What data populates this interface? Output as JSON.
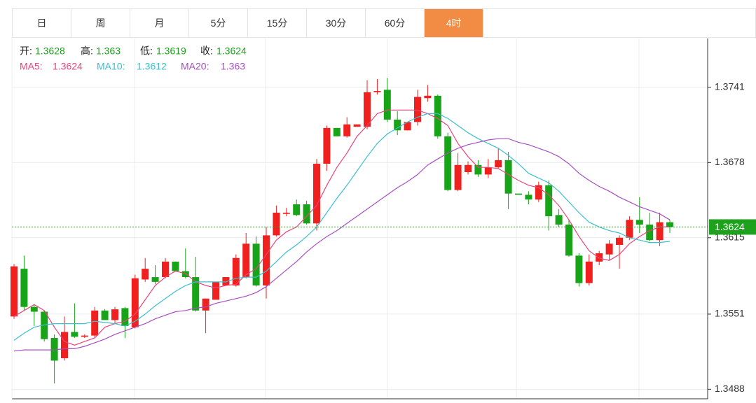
{
  "chart_data": {
    "type": "candlestick",
    "tabs": [
      "日",
      "周",
      "月",
      "5分",
      "15分",
      "30分",
      "60分",
      "4时"
    ],
    "active_tab": "4时",
    "info": [
      {
        "label": "开:",
        "value": 1.3628
      },
      {
        "label": "高:",
        "value": 1.363
      },
      {
        "label": "低:",
        "value": 1.3619
      },
      {
        "label": "收:",
        "value": 1.3624
      }
    ],
    "up_color": "#f0201f",
    "down_color": "#18a418",
    "candles": [
      [
        1.3549,
        1.3593,
        1.3547,
        1.3591
      ],
      [
        1.3589,
        1.36,
        1.3554,
        1.3557
      ],
      [
        1.3557,
        1.3559,
        1.3541,
        1.3553
      ],
      [
        1.3553,
        1.3554,
        1.3528,
        1.353
      ],
      [
        1.3531,
        1.3534,
        1.3493,
        1.3512
      ],
      [
        1.3514,
        1.3549,
        1.3512,
        1.3536
      ],
      [
        1.3536,
        1.356,
        1.3531,
        1.3532
      ],
      [
        1.3532,
        1.3534,
        1.3531,
        1.3533
      ],
      [
        1.3533,
        1.3557,
        1.3531,
        1.3554
      ],
      [
        1.3554,
        1.3555,
        1.3546,
        1.3546
      ],
      [
        1.3546,
        1.3557,
        1.3543,
        1.3555
      ],
      [
        1.3556,
        1.3557,
        1.3531,
        1.3541
      ],
      [
        1.354,
        1.3584,
        1.3539,
        1.3581
      ],
      [
        1.358,
        1.3598,
        1.3578,
        1.3589
      ],
      [
        1.3582,
        1.3592,
        1.3576,
        1.3578
      ],
      [
        1.3582,
        1.3598,
        1.3581,
        1.3595
      ],
      [
        1.3595,
        1.3595,
        1.3587,
        1.3587
      ],
      [
        1.3587,
        1.3606,
        1.3581,
        1.3582
      ],
      [
        1.3582,
        1.3599,
        1.3553,
        1.3554
      ],
      [
        1.3554,
        1.3564,
        1.3535,
        1.3564
      ],
      [
        1.3563,
        1.3578,
        1.3563,
        1.3578
      ],
      [
        1.3575,
        1.3582,
        1.3575,
        1.3582
      ],
      [
        1.3575,
        1.3601,
        1.3574,
        1.3598
      ],
      [
        1.3582,
        1.3619,
        1.3581,
        1.361
      ],
      [
        1.361,
        1.3616,
        1.3574,
        1.3575
      ],
      [
        1.3575,
        1.3624,
        1.3564,
        1.3617
      ],
      [
        1.3617,
        1.3642,
        1.3616,
        1.3636
      ],
      [
        1.3635,
        1.364,
        1.3633,
        1.3636
      ],
      [
        1.3643,
        1.3647,
        1.3633,
        1.3634
      ],
      [
        1.3643,
        1.3646,
        1.3626,
        1.3627
      ],
      [
        1.3627,
        1.3681,
        1.3621,
        1.3677
      ],
      [
        1.3677,
        1.3709,
        1.3671,
        1.3707
      ],
      [
        1.3707,
        1.3707,
        1.37,
        1.37
      ],
      [
        1.37,
        1.3716,
        1.3699,
        1.371
      ],
      [
        1.3708,
        1.371,
        1.3708,
        1.371
      ],
      [
        1.3708,
        1.3747,
        1.3706,
        1.3737
      ],
      [
        1.3737,
        1.3748,
        1.3735,
        1.3738
      ],
      [
        1.3739,
        1.3749,
        1.3712,
        1.3714
      ],
      [
        1.3714,
        1.3721,
        1.3701,
        1.3705
      ],
      [
        1.3705,
        1.3712,
        1.3705,
        1.3712
      ],
      [
        1.3712,
        1.3739,
        1.3709,
        1.3733
      ],
      [
        1.3732,
        1.3743,
        1.3729,
        1.3734
      ],
      [
        1.3734,
        1.3735,
        1.3698,
        1.37
      ],
      [
        1.37,
        1.3703,
        1.3654,
        1.3655
      ],
      [
        1.3655,
        1.3686,
        1.3654,
        1.3676
      ],
      [
        1.367,
        1.3679,
        1.3668,
        1.3676
      ],
      [
        1.3676,
        1.368,
        1.3666,
        1.3668
      ],
      [
        1.3668,
        1.3681,
        1.3665,
        1.3674
      ],
      [
        1.3674,
        1.369,
        1.3673,
        1.368
      ],
      [
        1.368,
        1.3687,
        1.3639,
        1.3652
      ],
      [
        1.3652,
        1.3652,
        1.3651,
        1.3651
      ],
      [
        1.3651,
        1.3654,
        1.3643,
        1.3647
      ],
      [
        1.3647,
        1.3662,
        1.3645,
        1.3659
      ],
      [
        1.3659,
        1.3663,
        1.3621,
        1.3633
      ],
      [
        1.3634,
        1.3639,
        1.3624,
        1.3626
      ],
      [
        1.3626,
        1.363,
        1.3599,
        1.36
      ],
      [
        1.36,
        1.3602,
        1.3574,
        1.3577
      ],
      [
        1.3577,
        1.3601,
        1.3575,
        1.3595
      ],
      [
        1.3595,
        1.3604,
        1.3592,
        1.3602
      ],
      [
        1.3601,
        1.3613,
        1.3596,
        1.361
      ],
      [
        1.3609,
        1.3617,
        1.3589,
        1.3615
      ],
      [
        1.3615,
        1.3633,
        1.3613,
        1.363
      ],
      [
        1.363,
        1.3649,
        1.3619,
        1.3626
      ],
      [
        1.3626,
        1.3636,
        1.3612,
        1.3613
      ],
      [
        1.3613,
        1.3636,
        1.3608,
        1.3628
      ],
      [
        1.3628,
        1.363,
        1.3619,
        1.3624
      ]
    ],
    "series": [
      {
        "name": "MA5:",
        "color": "#e8467c",
        "last": 1.3624,
        "values": [
          1.3549,
          1.3554,
          1.3559,
          1.3554,
          1.354,
          1.3528,
          1.3525,
          1.3528,
          1.3531,
          1.354,
          1.3543,
          1.3545,
          1.3551,
          1.3563,
          1.3575,
          1.3582,
          1.3587,
          1.3585,
          1.3578,
          1.3575,
          1.3573,
          1.3575,
          1.3576,
          1.3584,
          1.3589,
          1.3601,
          1.3613,
          1.362,
          1.3624,
          1.3633,
          1.3642,
          1.3659,
          1.3674,
          1.3686,
          1.37,
          1.3709,
          1.3719,
          1.3722,
          1.3722,
          1.3722,
          1.3722,
          1.3719,
          1.3715,
          1.3709,
          1.3694,
          1.3683,
          1.3674,
          1.3674,
          1.3673,
          1.3668,
          1.3663,
          1.3659,
          1.3657,
          1.3651,
          1.3642,
          1.363,
          1.3616,
          1.3604,
          1.3598,
          1.3596,
          1.3601,
          1.361,
          1.3616,
          1.3621,
          1.3624,
          1.3624
        ]
      },
      {
        "name": "MA10:",
        "color": "#3bbfcf",
        "last": 1.3612,
        "values": [
          1.3529,
          1.3535,
          1.354,
          1.3542,
          1.3543,
          1.3543,
          1.3543,
          1.3543,
          1.3545,
          1.3544,
          1.3543,
          1.3541,
          1.3545,
          1.3551,
          1.3558,
          1.3564,
          1.357,
          1.3575,
          1.3578,
          1.3578,
          1.3578,
          1.3578,
          1.3581,
          1.3582,
          1.3582,
          1.3587,
          1.3595,
          1.3603,
          1.3609,
          1.3616,
          1.3624,
          1.3636,
          1.3648,
          1.3659,
          1.3671,
          1.3683,
          1.3694,
          1.3702,
          1.3707,
          1.3712,
          1.3716,
          1.3719,
          1.3719,
          1.3715,
          1.3709,
          1.3703,
          1.3698,
          1.3694,
          1.369,
          1.3684,
          1.3677,
          1.3669,
          1.3665,
          1.3661,
          1.3654,
          1.3645,
          1.3636,
          1.3628,
          1.3624,
          1.3621,
          1.3619,
          1.3615,
          1.3613,
          1.3611,
          1.3611,
          1.3612
        ]
      },
      {
        "name": "MA20:",
        "color": "#a64fc0",
        "last": 1.363,
        "values": [
          1.352,
          1.3521,
          1.3521,
          1.3521,
          1.3521,
          1.3522,
          1.3522,
          1.3524,
          1.3527,
          1.353,
          1.3534,
          1.3537,
          1.354,
          1.3543,
          1.3547,
          1.355,
          1.3553,
          1.3554,
          1.3556,
          1.3557,
          1.356,
          1.3562,
          1.3564,
          1.3566,
          1.3569,
          1.3574,
          1.3581,
          1.3588,
          1.3595,
          1.3603,
          1.361,
          1.3616,
          1.3621,
          1.3627,
          1.3633,
          1.3639,
          1.3645,
          1.3651,
          1.3657,
          1.3662,
          1.3668,
          1.3676,
          1.3681,
          1.3686,
          1.369,
          1.3693,
          1.3695,
          1.3697,
          1.3698,
          1.3698,
          1.3695,
          1.3693,
          1.369,
          1.3687,
          1.3683,
          1.3677,
          1.3669,
          1.3663,
          1.3658,
          1.3654,
          1.3649,
          1.3645,
          1.3641,
          1.3638,
          1.3635,
          1.363
        ]
      }
    ],
    "current_price": 1.3624,
    "current_color": "#1ea21e",
    "ylim": [
      1.348,
      1.3782
    ],
    "yticks": [
      1.3488,
      1.3551,
      1.3615,
      1.3678,
      1.3741
    ],
    "grid": true
  }
}
